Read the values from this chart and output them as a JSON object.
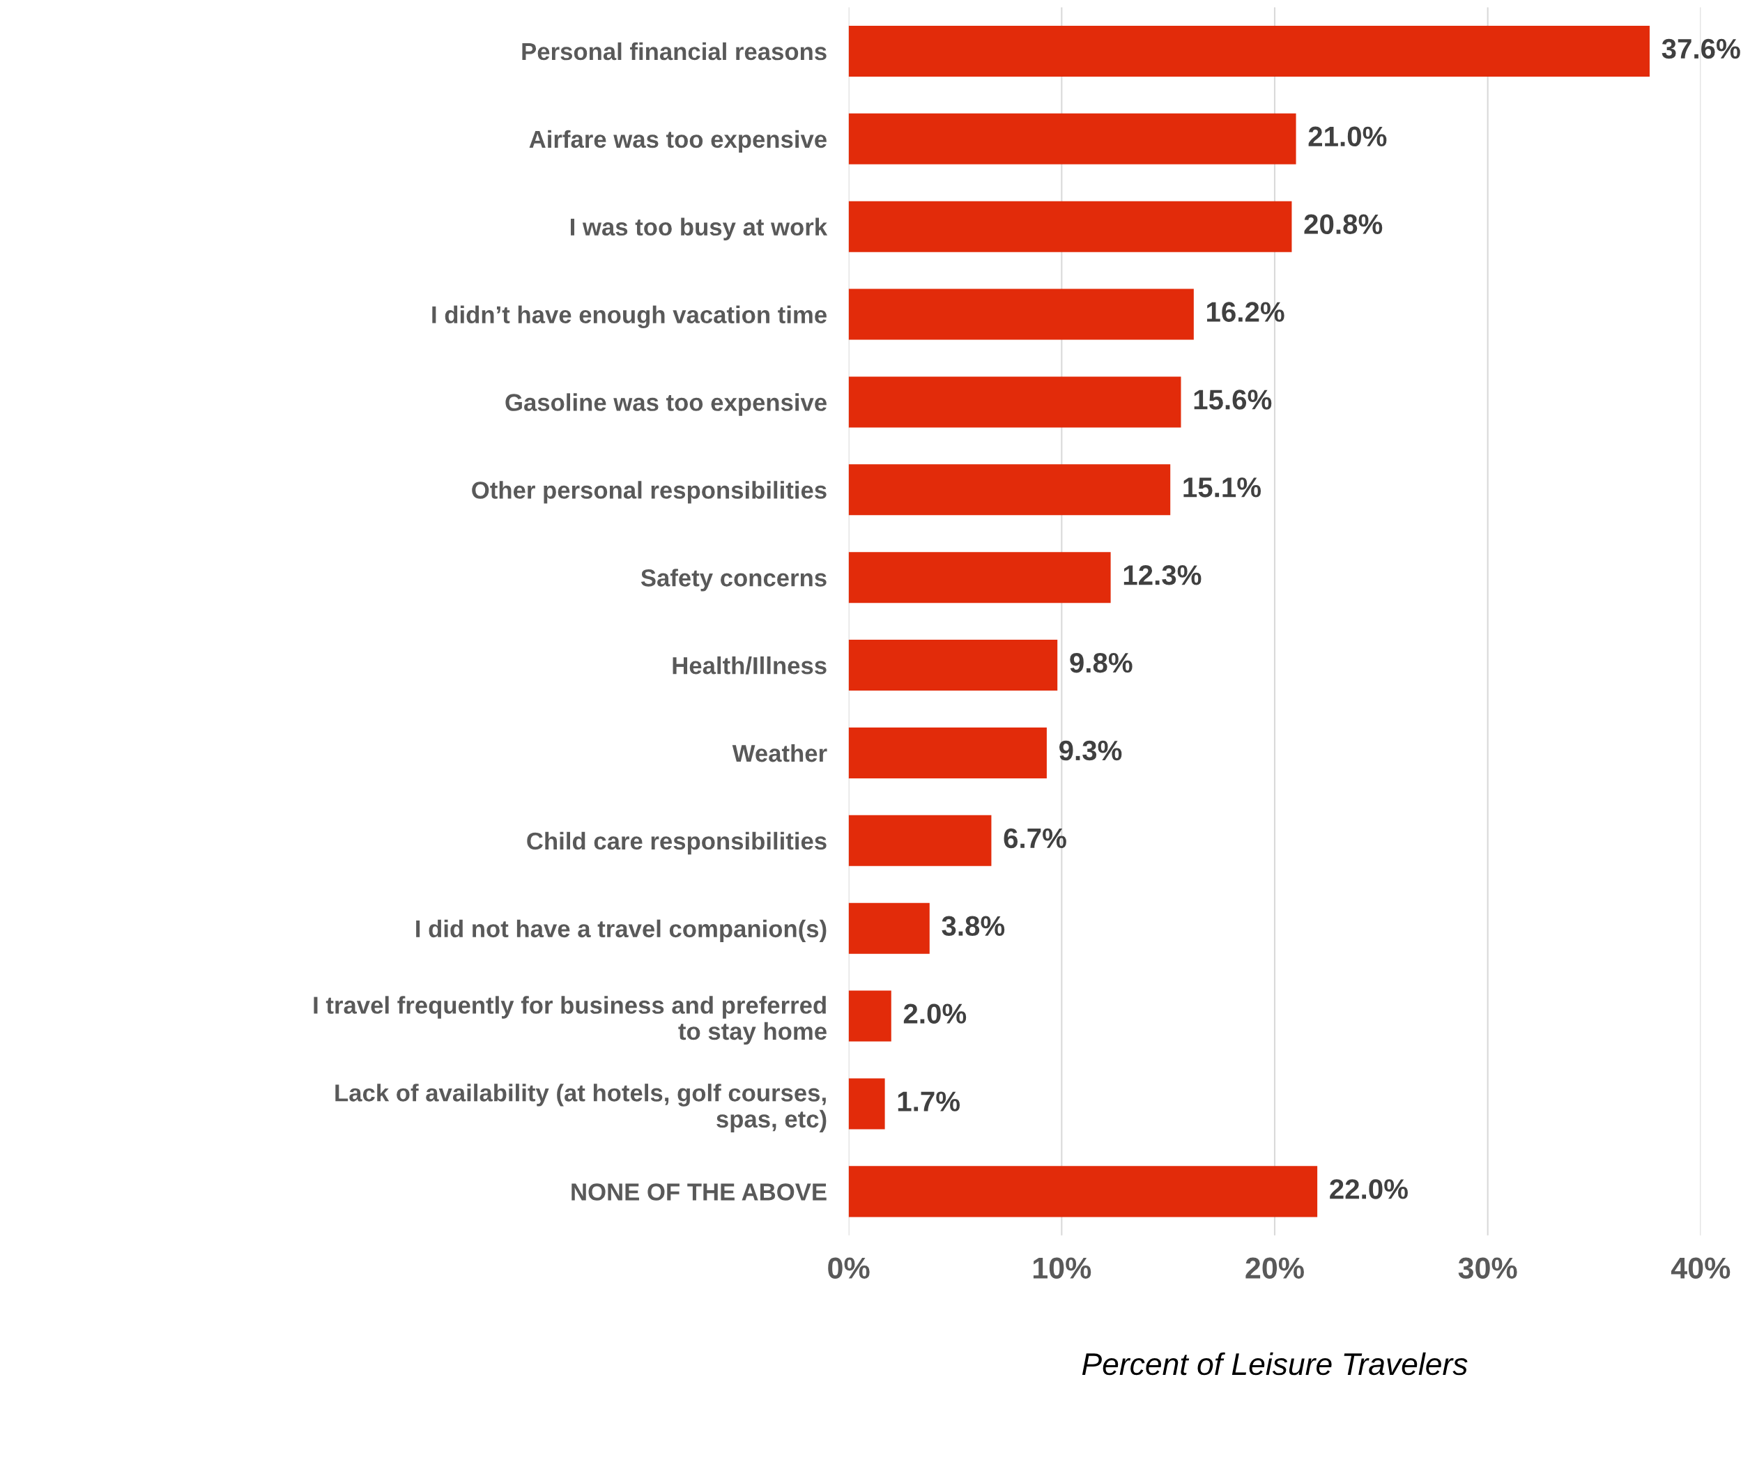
{
  "chart_data": {
    "type": "bar",
    "orientation": "horizontal",
    "xlabel": "Percent of Leisure Travelers",
    "categories": [
      "Personal financial reasons",
      "Airfare was too expensive",
      "I was too busy at work",
      "I didn’t have enough vacation time",
      "Gasoline was too expensive",
      "Other personal responsibilities",
      "Safety concerns",
      "Health/Illness",
      "Weather",
      "Child care responsibilities",
      "I did not have a travel companion(s)",
      "I travel frequently for business and preferred to stay home",
      "Lack of availability (at hotels, golf courses, spas, etc)",
      "NONE OF THE ABOVE"
    ],
    "values": [
      37.6,
      21.0,
      20.8,
      16.2,
      15.6,
      15.1,
      12.3,
      9.8,
      9.3,
      6.7,
      3.8,
      2.0,
      1.7,
      22.0
    ],
    "value_labels": [
      "37.6%",
      "21.0%",
      "20.8%",
      "16.2%",
      "15.6%",
      "15.1%",
      "12.3%",
      "9.8%",
      "9.3%",
      "6.7%",
      "3.8%",
      "2.0%",
      "1.7%",
      "22.0%"
    ],
    "color": "#e22b0a",
    "xlim": [
      0,
      40
    ],
    "xticks": [
      {
        "value": 0,
        "label": "0%"
      },
      {
        "value": 10,
        "label": "10%"
      },
      {
        "value": 20,
        "label": "20%"
      },
      {
        "value": 30,
        "label": "30%"
      },
      {
        "value": 40,
        "label": "40%"
      }
    ],
    "grid": "x"
  }
}
